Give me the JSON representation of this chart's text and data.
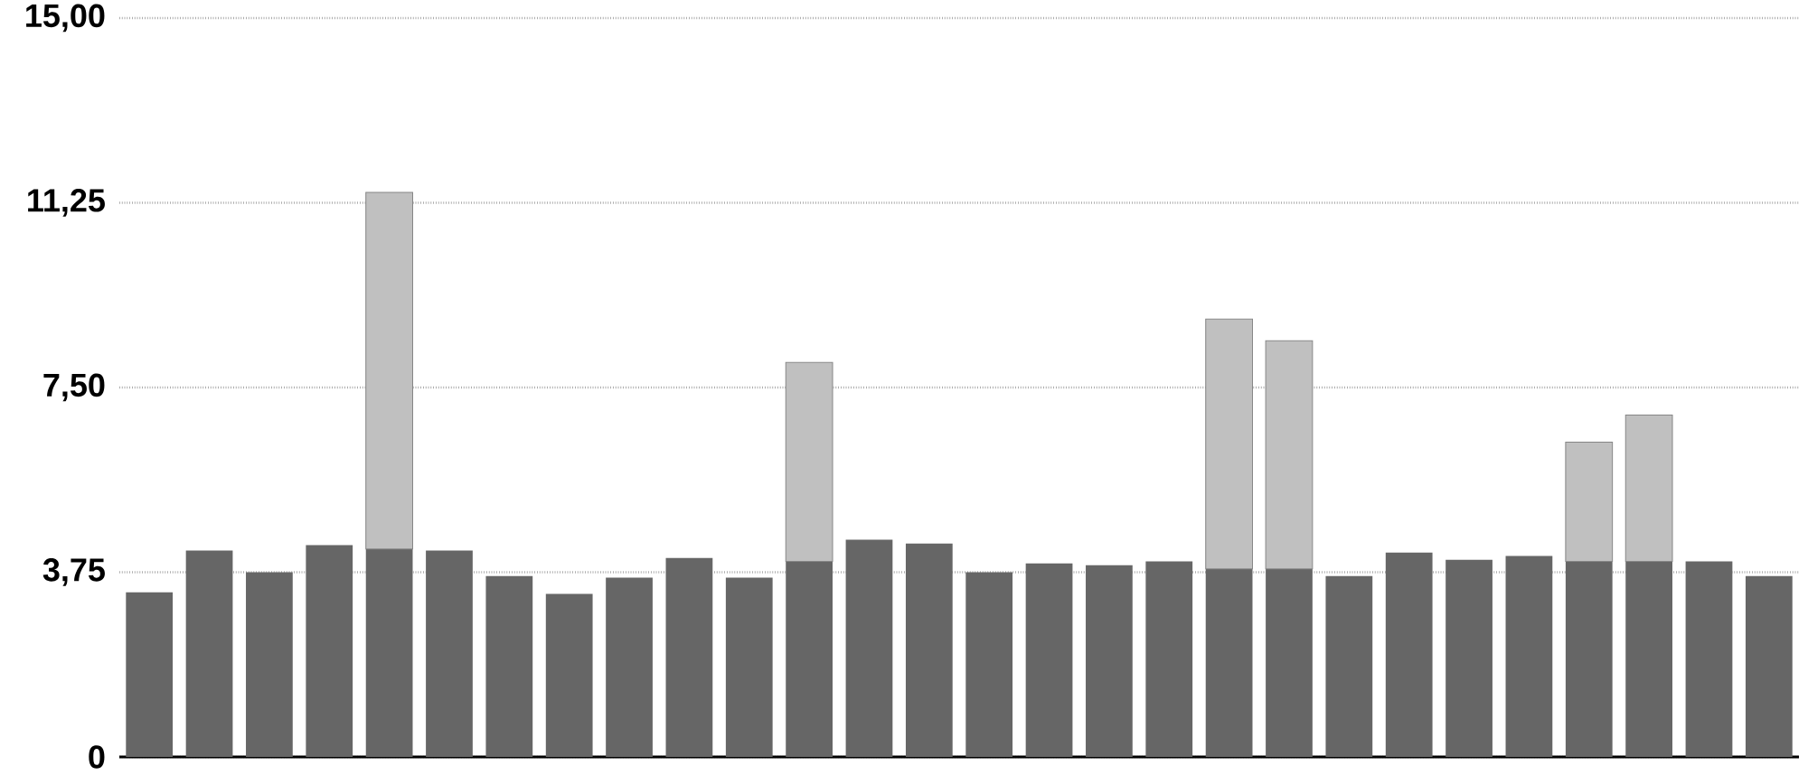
{
  "chart_data": {
    "type": "bar",
    "stacked": true,
    "categories": [
      null,
      null,
      null,
      null,
      null,
      null,
      null,
      null,
      null,
      null,
      null,
      null,
      null,
      null,
      null,
      null,
      null,
      null,
      null,
      null,
      null,
      null,
      null,
      null,
      null,
      null,
      null,
      null
    ],
    "series": [
      {
        "color": "#666666",
        "values": [
          3.34,
          4.19,
          3.75,
          4.3,
          4.22,
          4.19,
          3.67,
          3.31,
          3.64,
          4.04,
          3.64,
          3.97,
          4.41,
          4.33,
          3.75,
          3.93,
          3.89,
          3.97,
          3.82,
          3.82,
          3.67,
          4.15,
          4.0,
          4.08,
          3.97,
          3.97,
          3.97,
          3.67
        ]
      },
      {
        "color": "#c0c0c0",
        "values": [
          null,
          null,
          null,
          null,
          7.24,
          null,
          null,
          null,
          null,
          null,
          null,
          4.04,
          null,
          null,
          null,
          null,
          null,
          null,
          5.07,
          4.63,
          null,
          null,
          null,
          null,
          2.42,
          2.97,
          null,
          null
        ]
      }
    ],
    "ylim": [
      0,
      15
    ],
    "yticks": [
      0,
      {
        "value": 3.75,
        "label": "3,75"
      },
      {
        "value": 7.5,
        "label": "7,50"
      },
      {
        "value": 11.25,
        "label": "11,25"
      },
      {
        "value": 15,
        "label": "15,00"
      }
    ],
    "grid": "y"
  }
}
